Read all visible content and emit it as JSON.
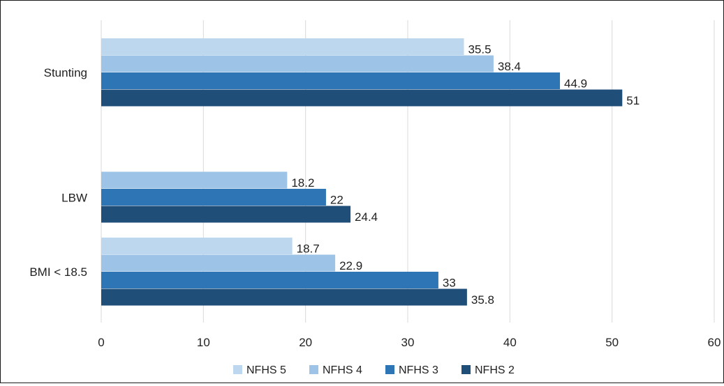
{
  "chart_data": {
    "type": "bar",
    "orientation": "horizontal",
    "categories": [
      "Stunting",
      "LBW",
      "BMI < 18.5"
    ],
    "series": [
      {
        "name": "NFHS 5",
        "color": "#bdd7ee",
        "values": [
          35.5,
          null,
          18.7
        ]
      },
      {
        "name": "NFHS 4",
        "color": "#9dc3e6",
        "values": [
          38.4,
          18.2,
          22.9
        ]
      },
      {
        "name": "NFHS 3",
        "color": "#2e75b6",
        "values": [
          44.9,
          22,
          33
        ]
      },
      {
        "name": "NFHS 2",
        "color": "#1f4e79",
        "values": [
          51,
          24.4,
          35.8
        ]
      }
    ],
    "xlim": [
      0,
      60
    ],
    "x_ticks": [
      0,
      10,
      20,
      30,
      40,
      50,
      60
    ],
    "grid": true,
    "legend_position": "bottom"
  }
}
